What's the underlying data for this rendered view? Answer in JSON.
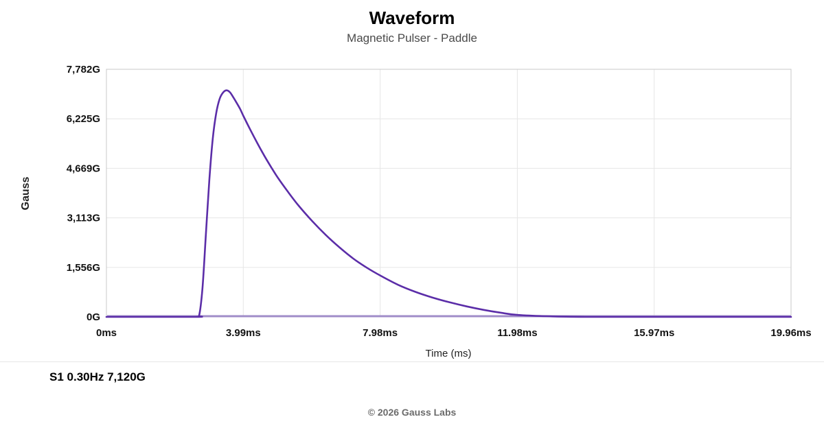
{
  "header": {
    "title": "Waveform",
    "subtitle": "Magnetic Pulser - Paddle"
  },
  "stats": {
    "line": "S1 0.30Hz 7,120G"
  },
  "footer": {
    "copyright": "© 2026 Gauss Labs"
  },
  "colors": {
    "series": "#5b2da8",
    "baseline": "#a08cc8",
    "grid": "#e6e6e6",
    "axis": "#c8c8c8"
  },
  "chart_data": {
    "type": "line",
    "title": "Waveform",
    "subtitle": "Magnetic Pulser - Paddle",
    "xlabel": "Time (ms)",
    "ylabel": "Gauss",
    "xlim": [
      0,
      19.96
    ],
    "ylim": [
      0,
      7782
    ],
    "grid": true,
    "legend": "none",
    "x_ticks": [
      {
        "value": 0,
        "label": "0ms"
      },
      {
        "value": 3.99,
        "label": "3.99ms"
      },
      {
        "value": 7.98,
        "label": "7.98ms"
      },
      {
        "value": 11.98,
        "label": "11.98ms"
      },
      {
        "value": 15.97,
        "label": "15.97ms"
      },
      {
        "value": 19.96,
        "label": "19.96ms"
      }
    ],
    "y_ticks": [
      {
        "value": 0,
        "label": "0G"
      },
      {
        "value": 1556,
        "label": "1,556G"
      },
      {
        "value": 3113,
        "label": "3,113G"
      },
      {
        "value": 4669,
        "label": "4,669G"
      },
      {
        "value": 6225,
        "label": "6,225G"
      },
      {
        "value": 7782,
        "label": "7,782G"
      }
    ],
    "series": [
      {
        "x": [
          0,
          0.4,
          2.6,
          2.7,
          2.8,
          2.9,
          3.0,
          3.1,
          3.2,
          3.3,
          3.4,
          3.5,
          3.6,
          3.7,
          3.8,
          3.9,
          4.0,
          4.2,
          4.4,
          4.6,
          4.8,
          5.0,
          5.3,
          5.6,
          6.0,
          6.4,
          6.8,
          7.2,
          7.6,
          8.0,
          8.5,
          9.0,
          9.5,
          10.0,
          10.5,
          11.0,
          11.5,
          12.0,
          13.0,
          14.0,
          15.0,
          16.0,
          17.0,
          18.0,
          19.0,
          19.96
        ],
        "y": [
          0,
          0,
          0,
          30,
          900,
          2600,
          4300,
          5600,
          6400,
          6850,
          7050,
          7120,
          7060,
          6900,
          6720,
          6530,
          6300,
          5870,
          5460,
          5070,
          4710,
          4370,
          3920,
          3500,
          3010,
          2570,
          2180,
          1830,
          1540,
          1290,
          1010,
          790,
          610,
          460,
          330,
          220,
          130,
          60,
          15,
          0,
          0,
          0,
          0,
          0,
          0,
          0
        ]
      }
    ]
  }
}
